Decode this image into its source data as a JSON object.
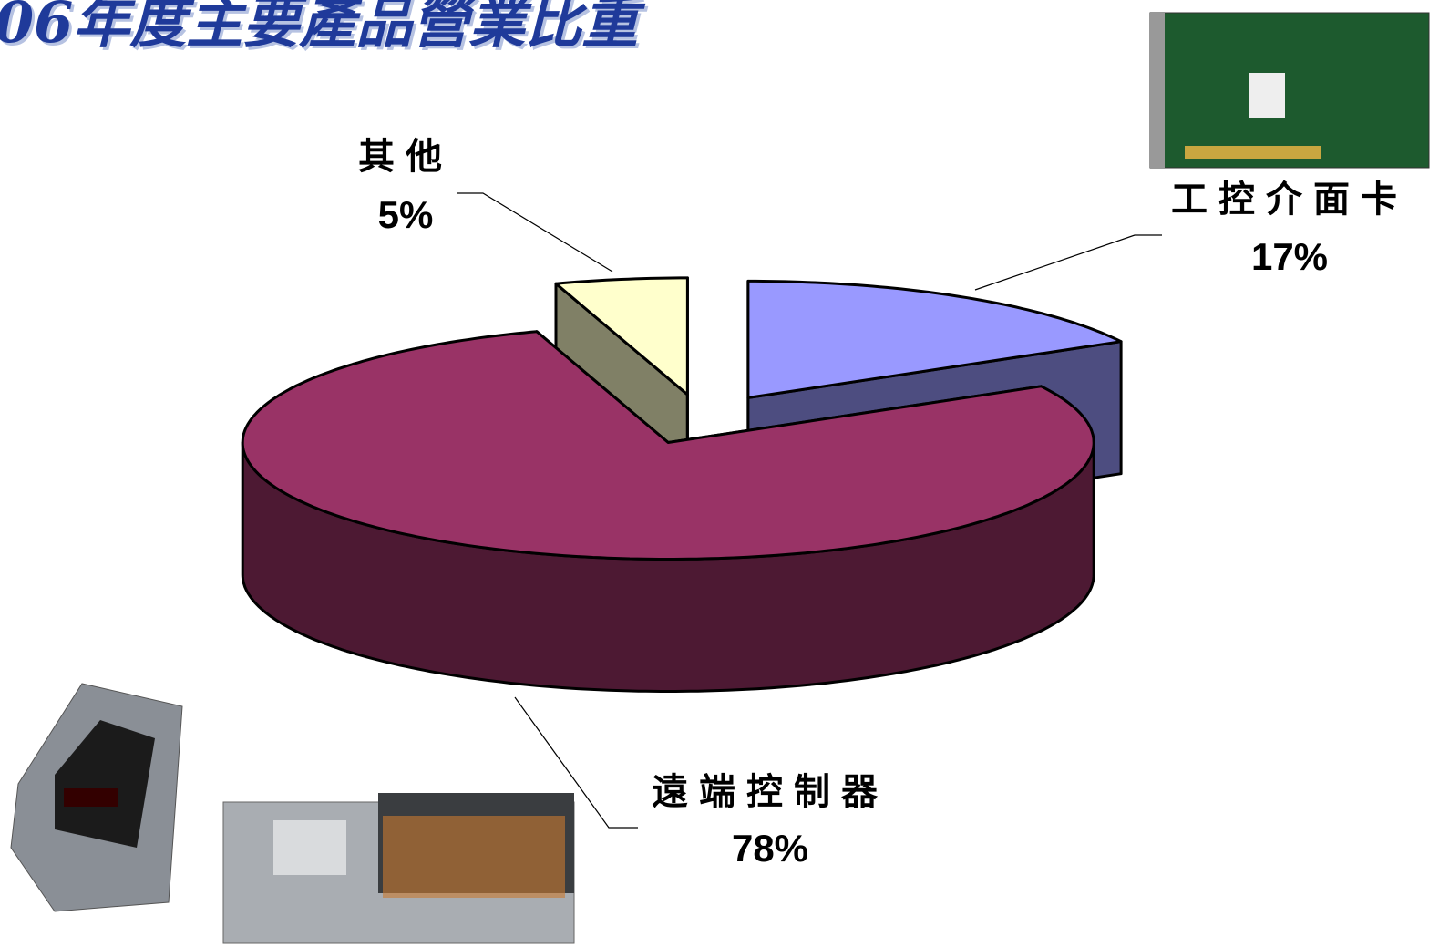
{
  "chart_data": {
    "type": "pie",
    "title": "06年度主要產品營業比重",
    "categories": [
      "工控介面卡",
      "遠端控制器",
      "其他"
    ],
    "values": [
      17,
      78,
      5
    ],
    "value_labels": [
      "17%",
      "78%",
      "5%"
    ],
    "colors": [
      "#9999ff",
      "#993366",
      "#ffffcc"
    ],
    "side_colors": [
      "#4d4d80",
      "#4d1933",
      "#808066"
    ]
  }
}
